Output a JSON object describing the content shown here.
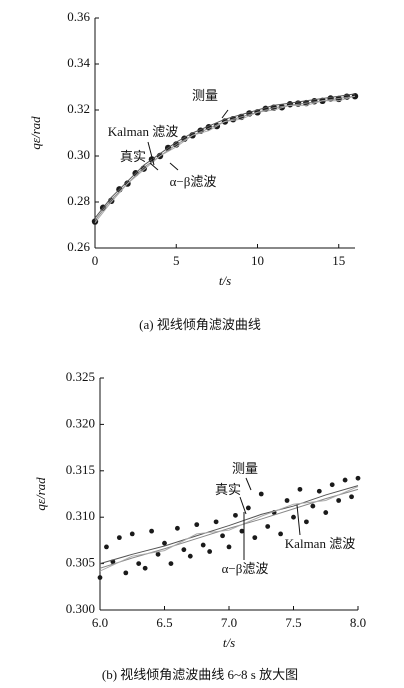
{
  "chart_data": [
    {
      "type": "line",
      "caption": "(a) 视线倾角滤波曲线",
      "xlabel": "t/s",
      "ylabel": "qε/rad",
      "xlim": [
        0,
        16
      ],
      "xticks": [
        0,
        5,
        10,
        15
      ],
      "ylim": [
        0.26,
        0.36
      ],
      "yticks": [
        0.26,
        0.28,
        {
          "value": 0.3,
          "label": "0.30"
        },
        0.32,
        0.34,
        0.36
      ],
      "series": [
        {
          "name": "测量",
          "color": "#1a1a1a",
          "style": "scatter",
          "x": [
            0,
            0.5,
            1,
            1.5,
            2,
            2.5,
            3,
            3.5,
            4,
            4.5,
            5,
            5.5,
            6,
            6.5,
            7,
            7.5,
            8,
            8.5,
            9,
            9.5,
            10,
            10.5,
            11,
            11.5,
            12,
            12.5,
            13,
            13.5,
            14,
            14.5,
            15,
            15.5,
            16
          ],
          "values": [
            0.2715,
            0.2775,
            0.2805,
            0.2855,
            0.288,
            0.2925,
            0.2945,
            0.2985,
            0.3,
            0.3035,
            0.305,
            0.3075,
            0.309,
            0.311,
            0.3125,
            0.313,
            0.315,
            0.316,
            0.317,
            0.3185,
            0.319,
            0.3205,
            0.321,
            0.3212,
            0.3225,
            0.3228,
            0.323,
            0.3238,
            0.324,
            0.325,
            0.3248,
            0.3258,
            0.326
          ]
        },
        {
          "name": "Kalman 滤波",
          "color": "#555555",
          "style": "line",
          "x": [
            0,
            1,
            2,
            3,
            4,
            5,
            6,
            7,
            8,
            9,
            10,
            11,
            12,
            13,
            14,
            15,
            16
          ],
          "values": [
            0.273,
            0.282,
            0.289,
            0.296,
            0.301,
            0.306,
            0.31,
            0.313,
            0.316,
            0.318,
            0.32,
            0.322,
            0.323,
            0.324,
            0.325,
            0.326,
            0.327
          ]
        },
        {
          "name": "真实",
          "color": "#888888",
          "style": "line",
          "x": [
            0,
            1,
            2,
            3,
            4,
            5,
            6,
            7,
            8,
            9,
            10,
            11,
            12,
            13,
            14,
            15,
            16
          ],
          "values": [
            0.272,
            0.281,
            0.288,
            0.295,
            0.3,
            0.305,
            0.309,
            0.312,
            0.315,
            0.317,
            0.319,
            0.321,
            0.322,
            0.323,
            0.324,
            0.325,
            0.326
          ]
        },
        {
          "name": "α−β滤波",
          "color": "#aaaaaa",
          "style": "line",
          "x": [
            0,
            1,
            2,
            3,
            4,
            5,
            6,
            7,
            8,
            9,
            10,
            11,
            12,
            13,
            14,
            15,
            16
          ],
          "values": [
            0.271,
            0.28,
            0.288,
            0.294,
            0.3,
            0.304,
            0.309,
            0.311,
            0.315,
            0.316,
            0.319,
            0.32,
            0.322,
            0.322,
            0.324,
            0.324,
            0.326
          ]
        }
      ]
    },
    {
      "type": "line",
      "caption": "(b) 视线倾角滤波曲线 6~8 s 放大图",
      "xlabel": "t/s",
      "ylabel": "qε/rad",
      "xlim": [
        6,
        8
      ],
      "xticks": [
        {
          "value": 6,
          "label": "6.0"
        },
        6.5,
        {
          "value": 7,
          "label": "7.0"
        },
        7.5,
        {
          "value": 8,
          "label": "8.0"
        }
      ],
      "ylim": [
        0.3,
        0.325
      ],
      "yticks": [
        {
          "value": 0.3,
          "label": "0.300"
        },
        0.305,
        {
          "value": 0.31,
          "label": "0.310"
        },
        0.315,
        {
          "value": 0.32,
          "label": "0.320"
        },
        0.325
      ],
      "series": [
        {
          "name": "测量",
          "color": "#1a1a1a",
          "style": "scatter",
          "x": [
            6,
            6.05,
            6.1,
            6.15,
            6.2,
            6.25,
            6.3,
            6.35,
            6.4,
            6.45,
            6.5,
            6.55,
            6.6,
            6.65,
            6.7,
            6.75,
            6.8,
            6.85,
            6.9,
            6.95,
            7,
            7.05,
            7.1,
            7.15,
            7.2,
            7.25,
            7.3,
            7.35,
            7.4,
            7.45,
            7.5,
            7.55,
            7.6,
            7.65,
            7.7,
            7.75,
            7.8,
            7.85,
            7.9,
            7.95,
            8
          ],
          "values": [
            0.3035,
            0.3068,
            0.3052,
            0.3078,
            0.304,
            0.3082,
            0.305,
            0.3045,
            0.3085,
            0.306,
            0.3072,
            0.305,
            0.3088,
            0.3065,
            0.3058,
            0.3092,
            0.307,
            0.3063,
            0.3095,
            0.308,
            0.3068,
            0.3102,
            0.3085,
            0.311,
            0.3078,
            0.3125,
            0.309,
            0.3105,
            0.3082,
            0.3118,
            0.31,
            0.313,
            0.3095,
            0.3112,
            0.3128,
            0.3105,
            0.3135,
            0.3118,
            0.314,
            0.3122,
            0.3142
          ]
        },
        {
          "name": "Kalman 滤波",
          "color": "#555555",
          "style": "line",
          "x": [
            6,
            6.25,
            6.5,
            6.75,
            7,
            7.25,
            7.5,
            7.75,
            8
          ],
          "values": [
            0.305,
            0.306,
            0.3069,
            0.308,
            0.3091,
            0.3103,
            0.3112,
            0.3124,
            0.3134
          ]
        },
        {
          "name": "真实",
          "color": "#888888",
          "style": "line",
          "x": [
            6,
            6.25,
            6.5,
            6.75,
            7,
            7.25,
            7.5,
            7.75,
            8
          ],
          "values": [
            0.3045,
            0.3056,
            0.3066,
            0.3077,
            0.3088,
            0.3098,
            0.3109,
            0.312,
            0.313
          ]
        },
        {
          "name": "α−β滤波",
          "color": "#aaaaaa",
          "style": "line",
          "x": [
            6,
            6.25,
            6.5,
            6.75,
            7,
            7.25,
            7.5,
            7.75,
            8
          ],
          "values": [
            0.3042,
            0.3058,
            0.3064,
            0.3082,
            0.3086,
            0.3101,
            0.3114,
            0.3118,
            0.3133
          ]
        }
      ]
    }
  ]
}
